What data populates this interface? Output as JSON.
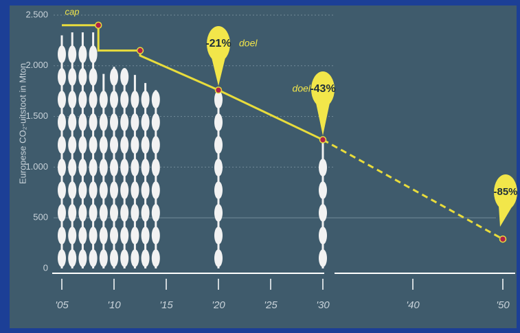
{
  "chart_data": {
    "type": "bar",
    "ylabel": "Europese CO₂-uitstoot in Mton",
    "x": [
      2005,
      2006,
      2007,
      2008,
      2009,
      2010,
      2011,
      2012,
      2013,
      2014,
      2020,
      2030
    ],
    "values": [
      2300,
      2330,
      2330,
      2330,
      1920,
      1990,
      1960,
      1910,
      1830,
      1760,
      1780,
      1270
    ],
    "color": "#f2f2f2",
    "cap_line": {
      "color": "#e8dc3c",
      "x": [
        2005,
        2008.5,
        2008.5,
        2012.5,
        2012.5,
        2020,
        2030
      ],
      "values": [
        2400,
        2400,
        2150,
        2150,
        2100,
        1760,
        1270
      ]
    },
    "target_line": {
      "color": "#e8dc3c",
      "dashed": true,
      "x": [
        2030,
        2050
      ],
      "values": [
        1270,
        290
      ]
    },
    "points": {
      "color": "#b0214a",
      "x": [
        2008.5,
        2012.5,
        2020,
        2030,
        2050
      ],
      "values": [
        2400,
        2150,
        1760,
        1270,
        290
      ]
    },
    "annotations": [
      "cap",
      "-21%",
      "doel",
      "doel",
      "-43%",
      "-85%"
    ],
    "ylim": [
      0,
      2500
    ],
    "yticks": [
      0,
      500,
      {
        "value": 1000,
        "label": "1.000"
      },
      {
        "value": 1500,
        "label": "1.500"
      },
      {
        "value": 2000,
        "label": "2.000"
      },
      {
        "value": 2500,
        "label": "2.500"
      }
    ],
    "xticks": [
      {
        "value": 2005,
        "label": "'05"
      },
      {
        "value": 2010,
        "label": "'10"
      },
      {
        "value": 2015,
        "label": "'15"
      },
      {
        "value": 2020,
        "label": "'20"
      },
      {
        "value": 2025,
        "label": "'25"
      },
      {
        "value": 2030,
        "label": "'30"
      },
      {
        "value": 2040,
        "label": "'40"
      },
      {
        "value": 2050,
        "label": "'50"
      }
    ],
    "grid": true
  }
}
